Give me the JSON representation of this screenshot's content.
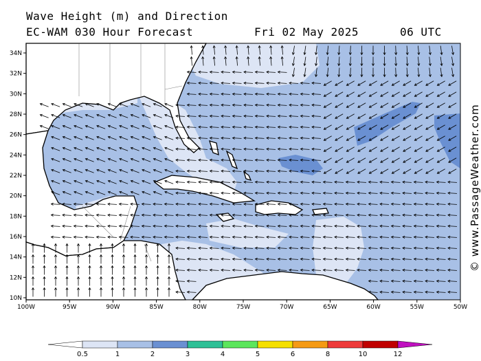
{
  "header": {
    "title": "Wave Height (m) and Direction",
    "model": "EC-WAM 030 Hour Forecast",
    "date": "Fri 02 May 2025",
    "time": "06 UTC"
  },
  "credit": "© www.PassageWeather.com",
  "axes": {
    "lat_labels": [
      "34N",
      "32N",
      "30N",
      "28N",
      "26N",
      "24N",
      "22N",
      "20N",
      "18N",
      "16N",
      "14N",
      "12N",
      "10N"
    ],
    "lon_labels": [
      "100W",
      "95W",
      "90W",
      "85W",
      "80W",
      "75W",
      "70W",
      "65W",
      "60W",
      "55W",
      "50W"
    ]
  },
  "legend": {
    "labels": [
      "0.5",
      "1",
      "2",
      "3",
      "4",
      "5",
      "6",
      "8",
      "10",
      "12"
    ],
    "colors": [
      "#ffffff",
      "#dde5f5",
      "#a8c0e6",
      "#6a90d2",
      "#2fc096",
      "#5ce65c",
      "#f5e000",
      "#f59a14",
      "#ee3a3a",
      "#c00000",
      "#c010c0"
    ]
  },
  "map_colors": {
    "land": "#ffffff",
    "sea_low": "#dde5f5",
    "sea_mid": "#a8c0e6",
    "sea_high": "#6a90d2"
  }
}
